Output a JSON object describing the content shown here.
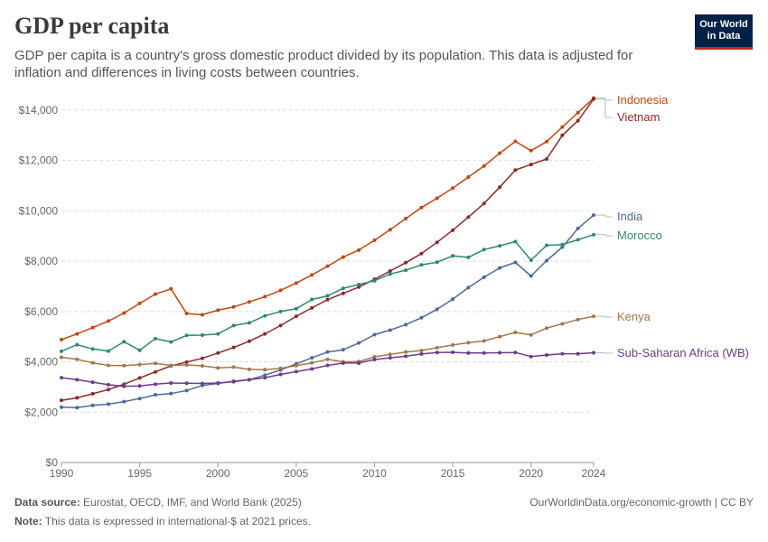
{
  "header": {
    "title": "GDP per capita",
    "subtitle": "GDP per capita is a country's gross domestic product divided by its population. This data is adjusted for inflation and differences in living costs between countries.",
    "logo_line1": "Our World",
    "logo_line2": "in Data",
    "logo_color": "#002147",
    "logo_accent": "#ce261e"
  },
  "footer": {
    "source_label": "Data source:",
    "source_text": "Eurostat, OECD, IMF, and World Bank (2025)",
    "note_label": "Note:",
    "note_text": "This data is expressed in international-$ at 2021 prices.",
    "url_text": "OurWorldinData.org/economic-growth | CC BY"
  },
  "chart_data": {
    "type": "line",
    "title": "GDP per capita",
    "xlim": [
      1990,
      2024
    ],
    "ylim": [
      0,
      14500
    ],
    "x_ticks": [
      {
        "value": 1990,
        "label": "1990"
      },
      {
        "value": 1995,
        "label": "1995"
      },
      {
        "value": 2000,
        "label": "2000"
      },
      {
        "value": 2005,
        "label": "2005"
      },
      {
        "value": 2010,
        "label": "2010"
      },
      {
        "value": 2015,
        "label": "2015"
      },
      {
        "value": 2020,
        "label": "2020"
      },
      {
        "value": 2024,
        "label": "2024"
      }
    ],
    "y_ticks": [
      {
        "value": 0,
        "label": "$0"
      },
      {
        "value": 2000,
        "label": "$2,000"
      },
      {
        "value": 4000,
        "label": "$4,000"
      },
      {
        "value": 6000,
        "label": "$6,000"
      },
      {
        "value": 8000,
        "label": "$8,000"
      },
      {
        "value": 10000,
        "label": "$10,000"
      },
      {
        "value": 12000,
        "label": "$12,000"
      },
      {
        "value": 14000,
        "label": "$14,000"
      }
    ],
    "grid": "horizontal-dashed",
    "legend": "right, labels at line ends",
    "x": [
      1990,
      1991,
      1992,
      1993,
      1994,
      1995,
      1996,
      1997,
      1998,
      1999,
      2000,
      2001,
      2002,
      2003,
      2004,
      2005,
      2006,
      2007,
      2008,
      2009,
      2010,
      2011,
      2012,
      2013,
      2014,
      2015,
      2016,
      2017,
      2018,
      2019,
      2020,
      2021,
      2022,
      2023,
      2024
    ],
    "series": [
      {
        "name": "Indonesia",
        "color": "#c0470f",
        "values": [
          4880,
          5110,
          5360,
          5620,
          5940,
          6320,
          6690,
          6900,
          5920,
          5870,
          6050,
          6180,
          6380,
          6590,
          6840,
          7130,
          7450,
          7800,
          8160,
          8440,
          8830,
          9250,
          9690,
          10130,
          10500,
          10900,
          11340,
          11780,
          12290,
          12760,
          12390,
          12750,
          13330,
          13900,
          14480
        ]
      },
      {
        "name": "Vietnam",
        "color": "#8b2a2a",
        "values": [
          2470,
          2570,
          2730,
          2900,
          3110,
          3360,
          3600,
          3840,
          3990,
          4140,
          4350,
          4570,
          4820,
          5110,
          5440,
          5810,
          6140,
          6470,
          6720,
          6970,
          7280,
          7610,
          7940,
          8300,
          8750,
          9230,
          9750,
          10290,
          10940,
          11620,
          11840,
          12060,
          13000,
          13580,
          14440
        ]
      },
      {
        "name": "India",
        "color": "#4c6a9c",
        "values": [
          2200,
          2180,
          2270,
          2320,
          2420,
          2540,
          2690,
          2740,
          2860,
          3060,
          3140,
          3230,
          3290,
          3470,
          3680,
          3920,
          4160,
          4390,
          4480,
          4750,
          5080,
          5260,
          5480,
          5750,
          6090,
          6490,
          6950,
          7360,
          7730,
          7950,
          7410,
          8020,
          8560,
          9300,
          9830
        ]
      },
      {
        "name": "Morocco",
        "color": "#2d8a6e",
        "values": [
          4420,
          4680,
          4510,
          4430,
          4800,
          4460,
          4920,
          4790,
          5050,
          5060,
          5110,
          5440,
          5550,
          5830,
          6000,
          6110,
          6480,
          6620,
          6920,
          7070,
          7220,
          7490,
          7640,
          7850,
          7960,
          8210,
          8150,
          8460,
          8610,
          8780,
          8040,
          8630,
          8660,
          8850,
          9050
        ]
      },
      {
        "name": "Kenya",
        "color": "#a4774a",
        "values": [
          4180,
          4100,
          3960,
          3860,
          3850,
          3890,
          3940,
          3860,
          3880,
          3840,
          3760,
          3790,
          3700,
          3690,
          3740,
          3850,
          3960,
          4100,
          4000,
          4010,
          4200,
          4300,
          4390,
          4450,
          4560,
          4670,
          4760,
          4830,
          5000,
          5170,
          5070,
          5340,
          5510,
          5680,
          5810
        ]
      },
      {
        "name": "Sub-Saharan Africa (WB)",
        "color": "#6b3d8a",
        "values": [
          3370,
          3290,
          3190,
          3090,
          3030,
          3040,
          3110,
          3160,
          3150,
          3140,
          3160,
          3210,
          3290,
          3370,
          3500,
          3610,
          3720,
          3860,
          3950,
          3950,
          4090,
          4160,
          4220,
          4310,
          4370,
          4380,
          4350,
          4350,
          4360,
          4370,
          4210,
          4270,
          4320,
          4320,
          4360
        ]
      }
    ]
  }
}
